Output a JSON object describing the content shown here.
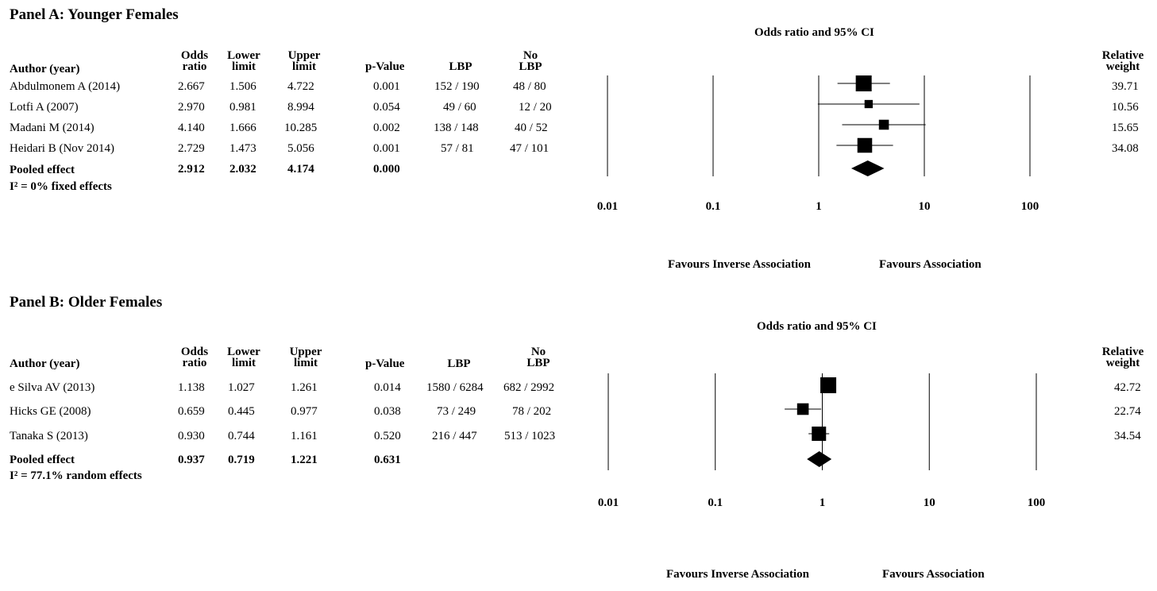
{
  "panels": [
    {
      "title": "Panel A: Younger Females",
      "plot_title": "Odds ratio and 95% CI",
      "headers": {
        "author": "Author (year)",
        "odds": [
          "Odds",
          "ratio"
        ],
        "lower": [
          "Lower",
          "limit"
        ],
        "upper": [
          "Upper",
          "limit"
        ],
        "p": "p-Value",
        "lbp": "LBP",
        "nolbp": [
          "No",
          "LBP"
        ],
        "weight": [
          "Relative",
          "weight"
        ]
      },
      "rows": [
        {
          "author": "Abdulmonem A (2014)",
          "or": "2.667",
          "lower": "1.506",
          "upper": "4.722",
          "p": "0.001",
          "lbp": "152 / 190",
          "nolbp": "48 / 80",
          "weight": "39.71"
        },
        {
          "author": "Lotfi A (2007)",
          "or": "2.970",
          "lower": "0.981",
          "upper": "8.994",
          "p": "0.054",
          "lbp": "49 / 60",
          "nolbp": "12 / 20",
          "weight": "10.56"
        },
        {
          "author": "Madani M (2014)",
          "or": "4.140",
          "lower": "1.666",
          "upper": "10.285",
          "p": "0.002",
          "lbp": "138 / 148",
          "nolbp": "40 / 52",
          "weight": "15.65"
        },
        {
          "author": "Heidari B (Nov 2014)",
          "or": "2.729",
          "lower": "1.473",
          "upper": "5.056",
          "p": "0.001",
          "lbp": "57 / 81",
          "nolbp": "47 / 101",
          "weight": "34.08"
        }
      ],
      "pooled": {
        "label": "Pooled effect",
        "or": "2.912",
        "lower": "2.032",
        "upper": "4.174",
        "p": "0.000"
      },
      "heterogeneity": "I² = 0% fixed effects",
      "axis_ticks": [
        "0.01",
        "0.1",
        "1",
        "10",
        "100"
      ],
      "favours_left": "Favours Inverse Association",
      "favours_right": "Favours Association"
    },
    {
      "title": "Panel B: Older Females",
      "plot_title": "Odds ratio and 95% CI",
      "headers": {
        "author": "Author (year)",
        "odds": [
          "Odds",
          "ratio"
        ],
        "lower": [
          "Lower",
          "limit"
        ],
        "upper": [
          "Upper",
          "limit"
        ],
        "p": "p-Value",
        "lbp": "LBP",
        "nolbp": [
          "No",
          "LBP"
        ],
        "weight": [
          "Relative",
          "weight"
        ]
      },
      "rows": [
        {
          "author": "e Silva AV (2013)",
          "or": "1.138",
          "lower": "1.027",
          "upper": "1.261",
          "p": "0.014",
          "lbp": "1580 / 6284",
          "nolbp": "682 / 2992",
          "weight": "42.72"
        },
        {
          "author": "Hicks GE (2008)",
          "or": "0.659",
          "lower": "0.445",
          "upper": "0.977",
          "p": "0.038",
          "lbp": "73 / 249",
          "nolbp": "78 / 202",
          "weight": "22.74"
        },
        {
          "author": "Tanaka S (2013)",
          "or": "0.930",
          "lower": "0.744",
          "upper": "1.161",
          "p": "0.520",
          "lbp": "216 / 447",
          "nolbp": "513 / 1023",
          "weight": "34.54"
        }
      ],
      "pooled": {
        "label": "Pooled effect",
        "or": "0.937",
        "lower": "0.719",
        "upper": "1.221",
        "p": "0.631"
      },
      "heterogeneity": "I² = 77.1% random effects",
      "axis_ticks": [
        "0.01",
        "0.1",
        "1",
        "10",
        "100"
      ],
      "favours_left": "Favours Inverse Association",
      "favours_right": "Favours Association"
    }
  ],
  "chart_data": [
    {
      "type": "forest",
      "title": "Panel A: Younger Females",
      "xlabel": "Odds ratio and 95% CI",
      "xscale": "log",
      "xlim": [
        0.01,
        100
      ],
      "studies": [
        {
          "name": "Abdulmonem A (2014)",
          "or": 2.667,
          "lower": 1.506,
          "upper": 4.722,
          "weight": 39.71
        },
        {
          "name": "Lotfi A (2007)",
          "or": 2.97,
          "lower": 0.981,
          "upper": 8.994,
          "weight": 10.56
        },
        {
          "name": "Madani M (2014)",
          "or": 4.14,
          "lower": 1.666,
          "upper": 10.285,
          "weight": 15.65
        },
        {
          "name": "Heidari B (Nov 2014)",
          "or": 2.729,
          "lower": 1.473,
          "upper": 5.056,
          "weight": 34.08
        }
      ],
      "pooled": {
        "or": 2.912,
        "lower": 2.032,
        "upper": 4.174
      }
    },
    {
      "type": "forest",
      "title": "Panel B: Older Females",
      "xlabel": "Odds ratio and 95% CI",
      "xscale": "log",
      "xlim": [
        0.01,
        100
      ],
      "studies": [
        {
          "name": "e Silva AV (2013)",
          "or": 1.138,
          "lower": 1.027,
          "upper": 1.261,
          "weight": 42.72
        },
        {
          "name": "Hicks GE (2008)",
          "or": 0.659,
          "lower": 0.445,
          "upper": 0.977,
          "weight": 22.74
        },
        {
          "name": "Tanaka S (2013)",
          "or": 0.93,
          "lower": 0.744,
          "upper": 1.161,
          "weight": 34.54
        }
      ],
      "pooled": {
        "or": 0.937,
        "lower": 0.719,
        "upper": 1.221
      }
    }
  ]
}
